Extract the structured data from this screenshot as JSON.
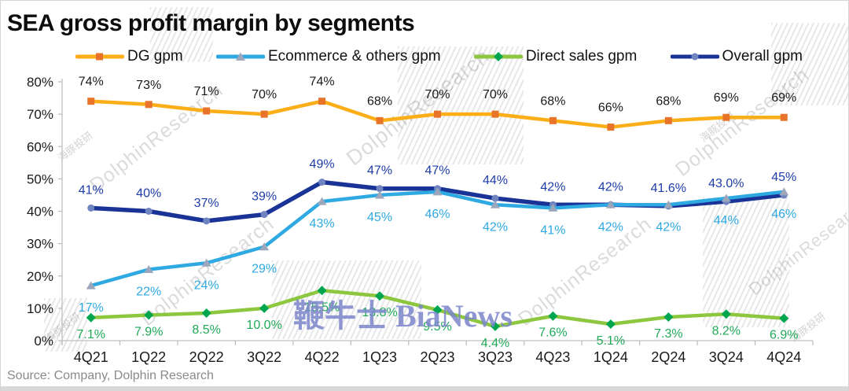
{
  "title": "SEA gross profit margin by segments",
  "source": "Source: Company, Dolphin Research",
  "watermarks": {
    "dolphin": "DolphinResearch",
    "dolphin_cn": "海豚投研",
    "bianews": "鞭牛士 BiaNews"
  },
  "chart_data": {
    "type": "line",
    "title": "SEA gross profit margin by segments",
    "categories": [
      "4Q21",
      "1Q22",
      "2Q22",
      "3Q22",
      "4Q22",
      "1Q23",
      "2Q23",
      "3Q23",
      "4Q23",
      "1Q24",
      "2Q24",
      "3Q24",
      "4Q24"
    ],
    "ylim": [
      0,
      80
    ],
    "yticks": [
      0,
      10,
      20,
      30,
      40,
      50,
      60,
      70,
      80
    ],
    "ytick_suffix": "%",
    "grid": false,
    "legend_position": "top",
    "axis_color": "#bfbfbf",
    "tick_label_color": "#1a1a1a",
    "series": [
      {
        "name": "DG gpm",
        "color": "#fbae17",
        "marker": "square",
        "marker_color": "#e8742a",
        "label_color": "#1a1a1a",
        "label_pos": "above",
        "label_dy": -20,
        "values": [
          74,
          73,
          71,
          70,
          74,
          68,
          70,
          70,
          68,
          66,
          68,
          69,
          69
        ],
        "labels": [
          "74%",
          "73%",
          "71%",
          "70%",
          "74%",
          "68%",
          "70%",
          "70%",
          "68%",
          "66%",
          "68%",
          "69%",
          "69%"
        ]
      },
      {
        "name": "Ecommerce & others gpm",
        "color": "#2fa9e1",
        "marker": "triangle",
        "marker_color": "#9da7bb",
        "label_color": "#2fa9e1",
        "label_pos": "below",
        "label_dy": 33,
        "values": [
          17,
          22,
          24,
          29,
          43,
          45,
          46,
          42,
          41,
          42,
          42,
          44,
          46
        ],
        "labels": [
          "17%",
          "22%",
          "24%",
          "29%",
          "43%",
          "45%",
          "46%",
          "42%",
          "41%",
          "42%",
          "42%",
          "44%",
          "46%"
        ]
      },
      {
        "name": "Direct sales gpm",
        "color": "#8dc63f",
        "marker": "diamond",
        "marker_color": "#00a550",
        "label_color": "#21a958",
        "label_pos": "below",
        "label_dy": 26,
        "values": [
          7.1,
          7.9,
          8.5,
          10.0,
          15.5,
          13.8,
          9.5,
          4.4,
          7.6,
          5.1,
          7.3,
          8.2,
          6.9
        ],
        "labels": [
          "7.1%",
          "7.9%",
          "8.5%",
          "10.0%",
          "15.5%",
          "13.8%",
          "9.5%",
          "4.4%",
          "7.6%",
          "5.1%",
          "7.3%",
          "8.2%",
          "6.9%"
        ]
      },
      {
        "name": "Overall gpm",
        "color": "#1a3397",
        "marker": "circle",
        "marker_color": "#7084c1",
        "label_color": "#1f3da8",
        "label_pos": "above",
        "label_dy": -18,
        "values": [
          41,
          40,
          37,
          39,
          49,
          47,
          47,
          44,
          42,
          42,
          41.6,
          43,
          45
        ],
        "labels": [
          "41%",
          "40%",
          "37%",
          "39%",
          "49%",
          "47%",
          "47%",
          "44%",
          "42%",
          "42%",
          "41.6%",
          "43.0%",
          "45%"
        ]
      }
    ]
  }
}
